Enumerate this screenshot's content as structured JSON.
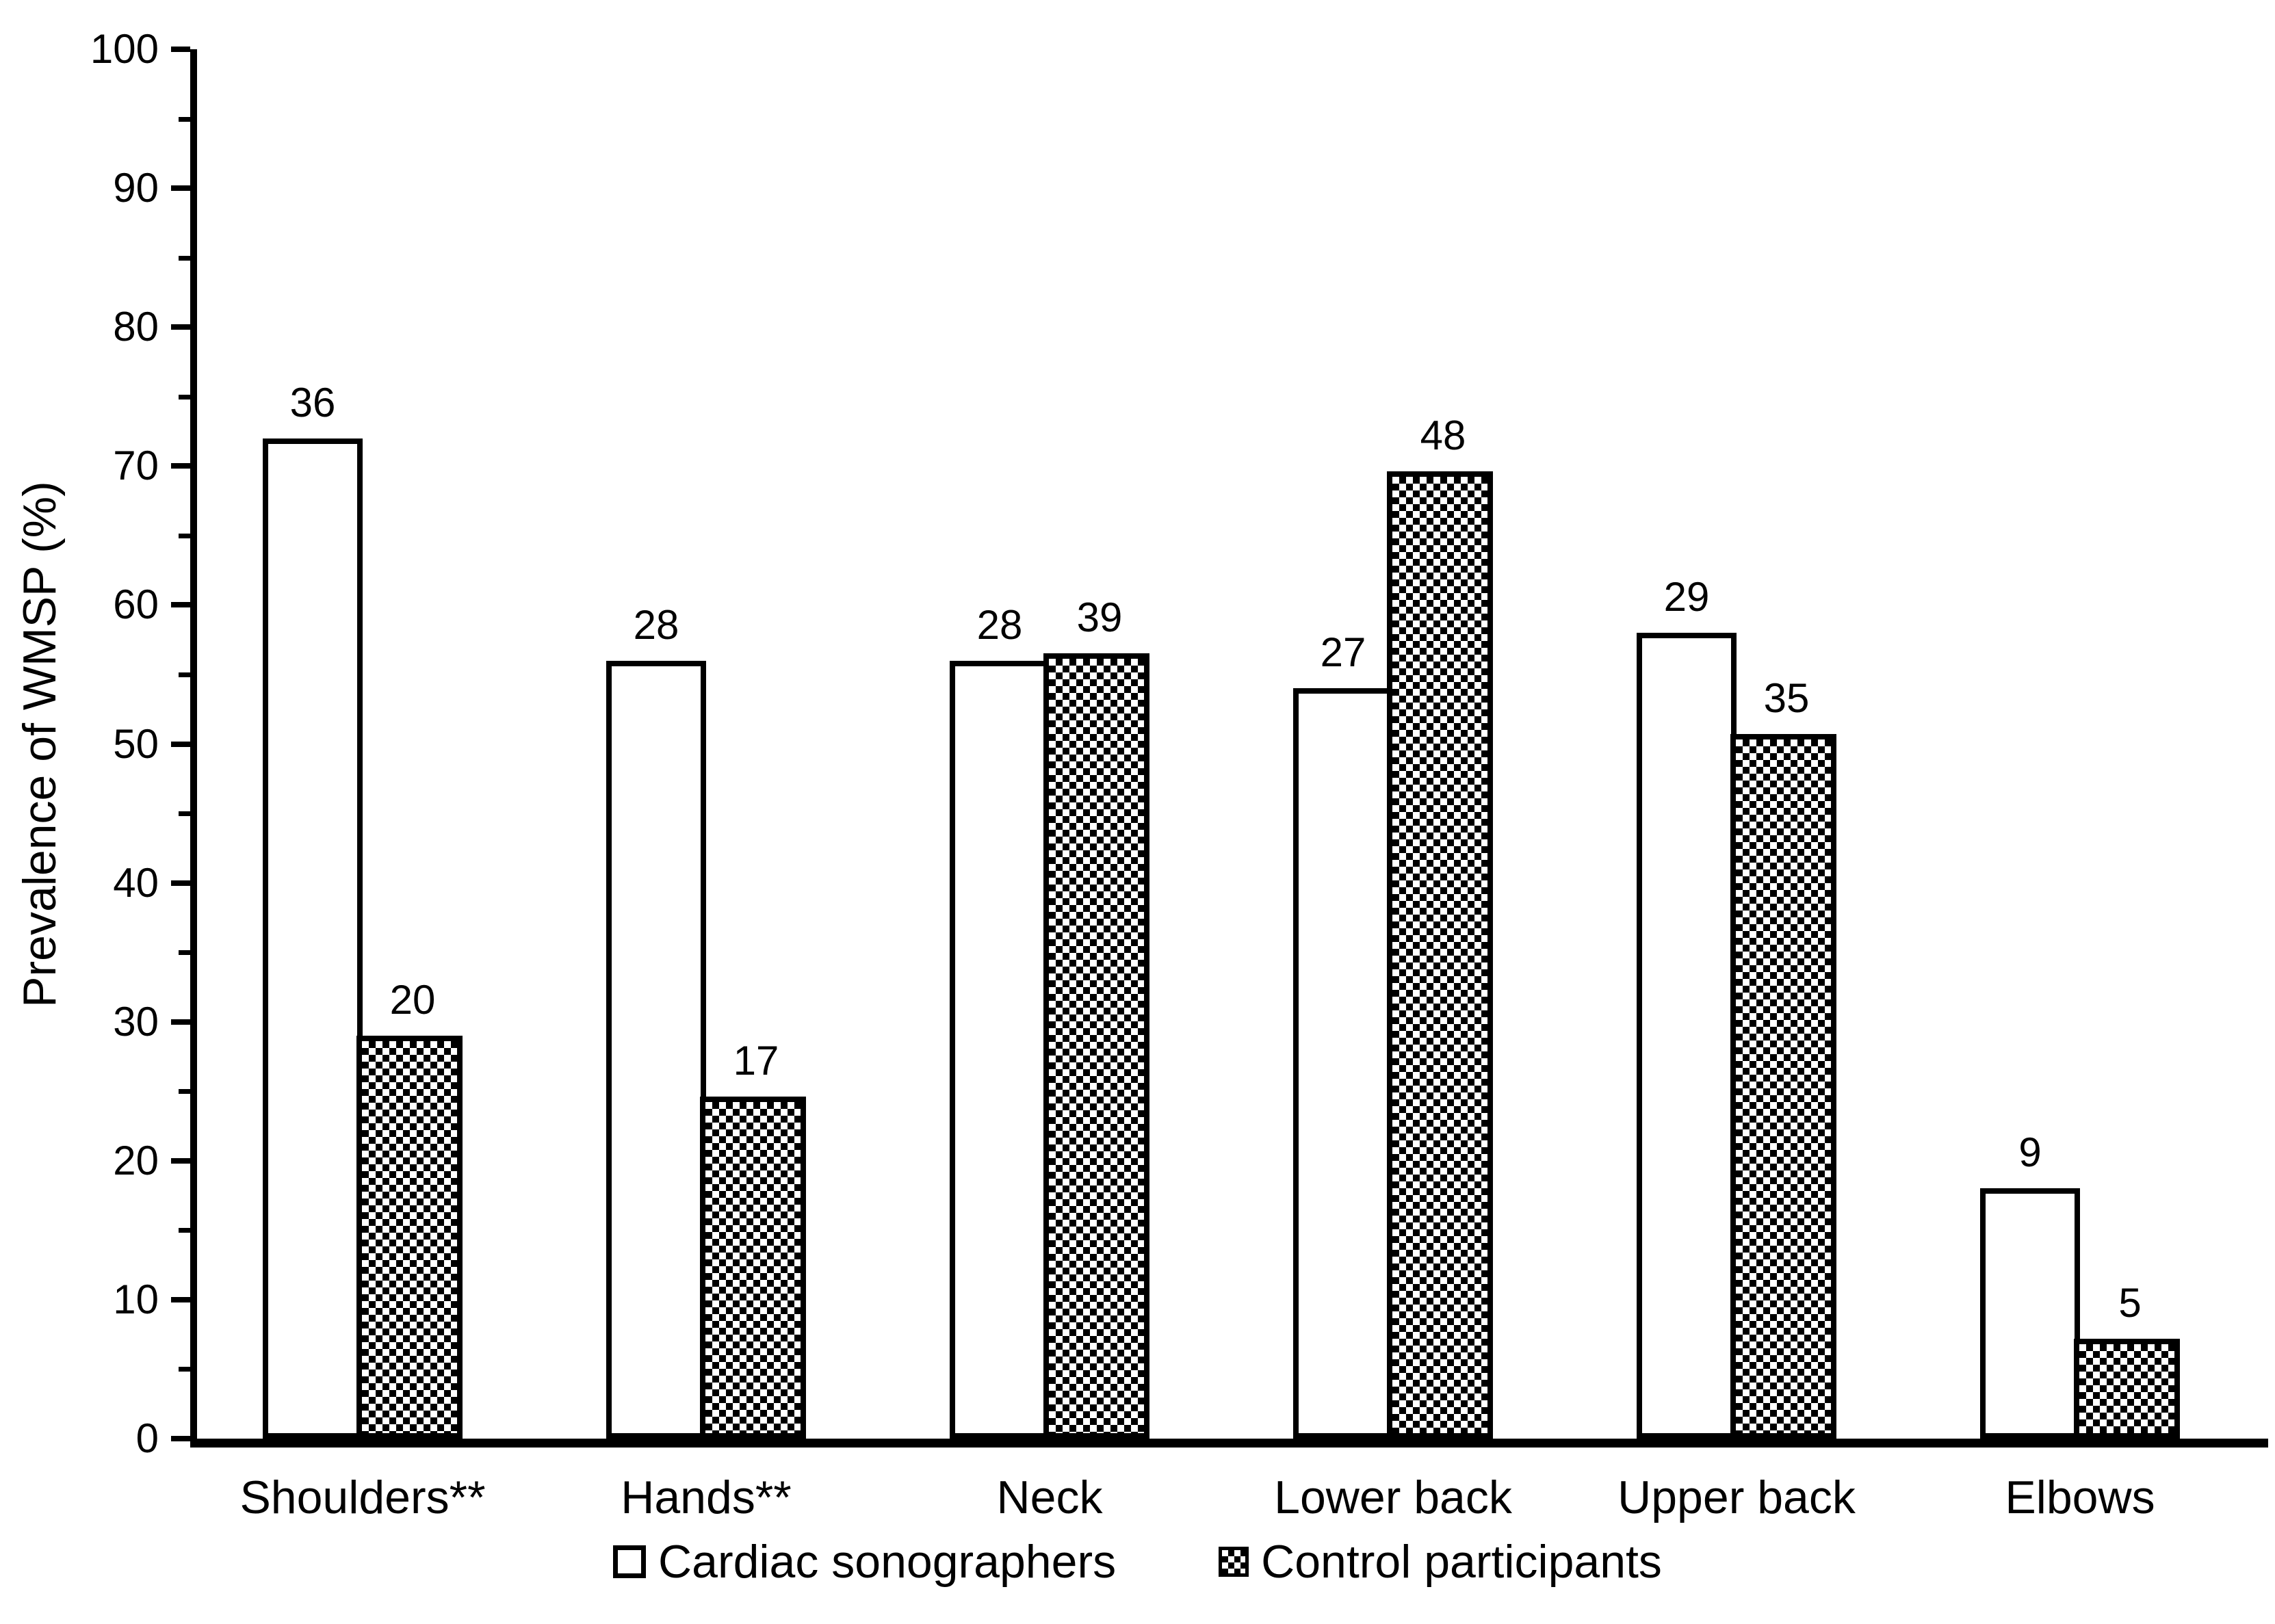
{
  "chart_data": {
    "type": "bar",
    "title": "",
    "xlabel": "",
    "ylabel": "Prevalence of WMSP (%)",
    "ylim": [
      0,
      100
    ],
    "y_major_tick": 10,
    "y_minor_tick": 5,
    "grid": "off",
    "legend_position": "bottom",
    "categories": [
      "Shoulders**",
      "Hands**",
      "Neck",
      "Lower back",
      "Upper back",
      "Elbows"
    ],
    "series": [
      {
        "name": "Cardiac sonographers",
        "fill": "white",
        "bar_labels": [
          36,
          28,
          28,
          27,
          29,
          9
        ],
        "values_pct": [
          72,
          56,
          56,
          54,
          58,
          18
        ]
      },
      {
        "name": "Control participants",
        "fill": "checkerboard",
        "bar_labels": [
          20,
          17,
          39,
          48,
          35,
          5
        ],
        "values_pct": [
          29,
          24.6,
          56.5,
          69.6,
          50.7,
          7.2
        ]
      }
    ],
    "colors": {
      "foreground": "#000000",
      "background": "#ffffff"
    }
  }
}
